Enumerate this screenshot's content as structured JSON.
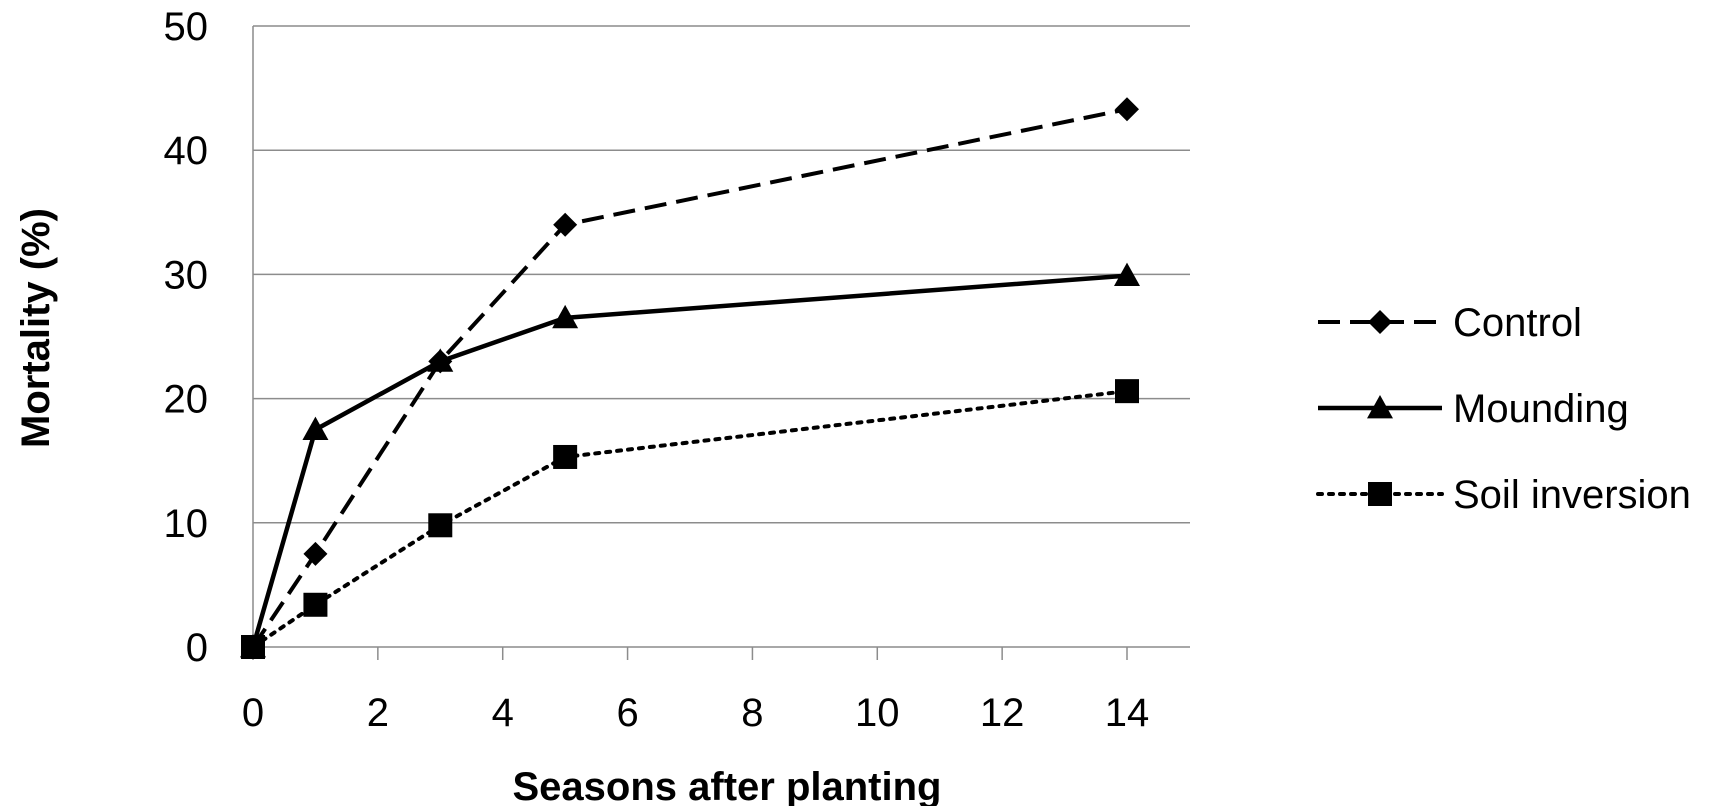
{
  "chart_data": {
    "type": "line",
    "xlabel": "Seasons after planting",
    "ylabel": "Mortality (%)",
    "xlim": [
      0,
      15
    ],
    "ylim": [
      0,
      50
    ],
    "x_ticks": [
      "0",
      "2",
      "4",
      "6",
      "8",
      "10",
      "12",
      "14"
    ],
    "y_ticks": [
      "0",
      "10",
      "20",
      "30",
      "40",
      "50"
    ],
    "x_tick_values": [
      0,
      2,
      4,
      6,
      8,
      10,
      12,
      14
    ],
    "y_tick_values": [
      0,
      10,
      20,
      30,
      40,
      50
    ],
    "grid": "horizontal",
    "legend_position": "right",
    "series": [
      {
        "name": "Control",
        "x": [
          0,
          1,
          3,
          5,
          14
        ],
        "values": [
          0,
          7.5,
          23,
          34,
          43.3
        ],
        "line_style": "dashed",
        "marker": "diamond",
        "color": "#000000"
      },
      {
        "name": "Mounding",
        "x": [
          0,
          1,
          3,
          5,
          14
        ],
        "values": [
          0,
          17.5,
          23,
          26.5,
          29.9
        ],
        "line_style": "solid",
        "marker": "triangle",
        "color": "#000000"
      },
      {
        "name": "Soil inversion",
        "x": [
          0,
          1,
          3,
          5,
          14
        ],
        "values": [
          0,
          3.4,
          9.8,
          15.3,
          20.6
        ],
        "line_style": "dotted",
        "marker": "square",
        "color": "#000000"
      }
    ]
  }
}
